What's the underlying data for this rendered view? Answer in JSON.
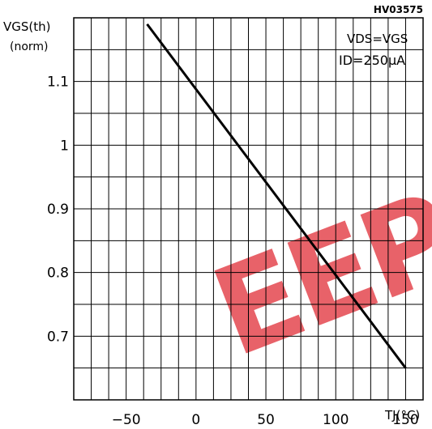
{
  "figure_code": "HV03575",
  "chart_data": {
    "type": "line",
    "title": "",
    "ylabel_line1": "VGS(th)",
    "ylabel_line2": "(norm)",
    "xlabel": "TJ(°C)",
    "annotation_line1": "VDS=VGS",
    "annotation_line2": "ID=250μA",
    "xlim": [
      -87.5,
      162.5
    ],
    "ylim": [
      0.6,
      1.2
    ],
    "x_ticks": [
      -50,
      0,
      50,
      100,
      150
    ],
    "x_tick_labels": [
      "−50",
      "0",
      "50",
      "100",
      "150"
    ],
    "y_ticks": [
      0.7,
      0.8,
      0.9,
      1,
      1.1
    ],
    "y_tick_labels": [
      "0.7",
      "0.8",
      "0.9",
      "1",
      "1.1"
    ],
    "grid": true,
    "series": [
      {
        "x": [
          -35,
          150
        ],
        "y": [
          1.19,
          0.65
        ]
      }
    ]
  },
  "colors": {
    "line": "#000000",
    "grid": "#000000",
    "watermark": "#e5474f"
  },
  "watermark_text": "EEPS"
}
